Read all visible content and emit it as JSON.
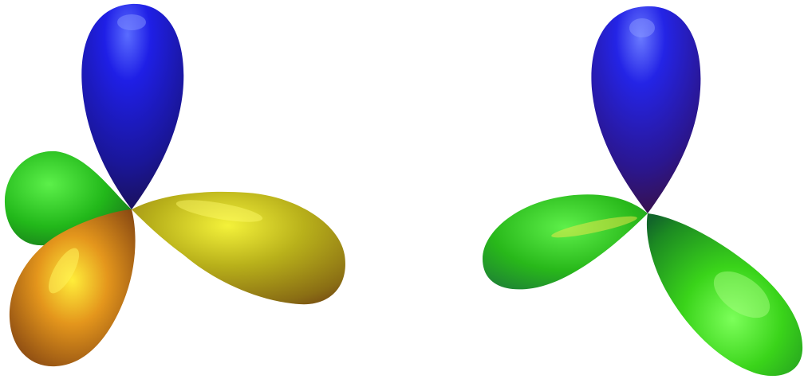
{
  "scene": {
    "background": "#ffffff",
    "figures": [
      {
        "name": "left-trefoil",
        "lobes": [
          {
            "name": "top-lobe",
            "color": "#1a1ae0"
          },
          {
            "name": "left-lobe",
            "color": "#2ecc1a"
          },
          {
            "name": "lower-left-lobe",
            "color": "#d9a01a"
          },
          {
            "name": "right-lobe",
            "color": "#c9c41a"
          }
        ]
      },
      {
        "name": "right-trefoil",
        "lobes": [
          {
            "name": "top-lobe",
            "color": "#1a1ae0"
          },
          {
            "name": "left-lobe",
            "color": "#2ecc1a"
          },
          {
            "name": "lower-right-lobe",
            "color": "#33e61a"
          }
        ]
      }
    ]
  }
}
